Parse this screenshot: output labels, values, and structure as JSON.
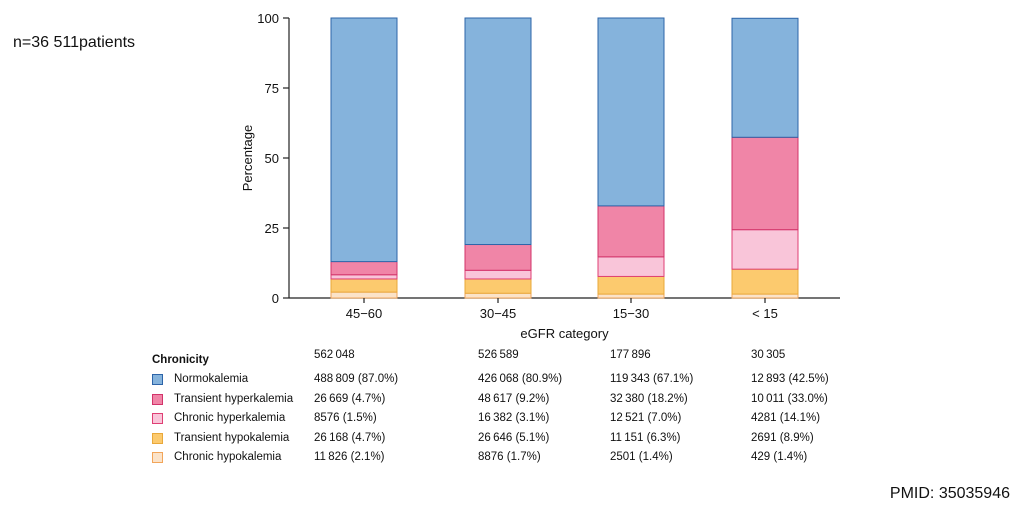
{
  "note": "n=36 511patients",
  "pmid": "PMID: 35035946",
  "chart_data": {
    "type": "bar",
    "stacked": true,
    "xlabel": "eGFR category",
    "ylabel": "Percentage",
    "ylim": [
      0,
      100
    ],
    "yticks": [
      0,
      25,
      50,
      75,
      100
    ],
    "categories": [
      "45−60",
      "30−45",
      "15−30",
      "< 15"
    ],
    "series": [
      {
        "name": "Chronic hypokalemia",
        "fill": "#fbe3c9",
        "stroke": "#f2a55a",
        "values": [
          2.1,
          1.7,
          1.4,
          1.4
        ]
      },
      {
        "name": "Transient hypokalemia",
        "fill": "#fcca6e",
        "stroke": "#e9a83a",
        "values": [
          4.7,
          5.1,
          6.3,
          8.9
        ]
      },
      {
        "name": "Chronic hyperkalemia",
        "fill": "#f9c5d9",
        "stroke": "#df3f74",
        "values": [
          1.5,
          3.1,
          7.0,
          14.1
        ]
      },
      {
        "name": "Transient hyperkalemia",
        "fill": "#f085a7",
        "stroke": "#d2336a",
        "values": [
          4.7,
          9.2,
          18.2,
          33.0
        ]
      },
      {
        "name": "Normokalemia",
        "fill": "#85b3dc",
        "stroke": "#2d64a8",
        "values": [
          87.0,
          80.9,
          67.1,
          42.5
        ]
      }
    ]
  },
  "table": {
    "header": "Chronicity",
    "totals": [
      "562 048",
      "526 589",
      "177 896",
      "30 305"
    ],
    "rows": [
      {
        "label": "Normokalemia",
        "fill": "#85b3dc",
        "stroke": "#2d64a8",
        "cells": [
          "488 809 (87.0%)",
          "426 068 (80.9%)",
          "119 343 (67.1%)",
          "12 893 (42.5%)"
        ]
      },
      {
        "label": "Transient hyperkalemia",
        "fill": "#f085a7",
        "stroke": "#d2336a",
        "cells": [
          "26 669 (4.7%)",
          "48 617 (9.2%)",
          "32 380 (18.2%)",
          "10 011 (33.0%)"
        ]
      },
      {
        "label": "Chronic hyperkalemia",
        "fill": "#f9c5d9",
        "stroke": "#df3f74",
        "cells": [
          "8576 (1.5%)",
          "16 382 (3.1%)",
          "12 521 (7.0%)",
          "4281 (14.1%)"
        ]
      },
      {
        "label": "Transient hypokalemia",
        "fill": "#fcca6e",
        "stroke": "#e9a83a",
        "cells": [
          "26 168 (4.7%)",
          "26 646 (5.1%)",
          "11 151 (6.3%)",
          "2691 (8.9%)"
        ]
      },
      {
        "label": "Chronic hypokalemia",
        "fill": "#fbe3c9",
        "stroke": "#f2a55a",
        "cells": [
          "11 826 (2.1%)",
          "8876 (1.7%)",
          "2501 (1.4%)",
          "429 (1.4%)"
        ]
      }
    ]
  }
}
